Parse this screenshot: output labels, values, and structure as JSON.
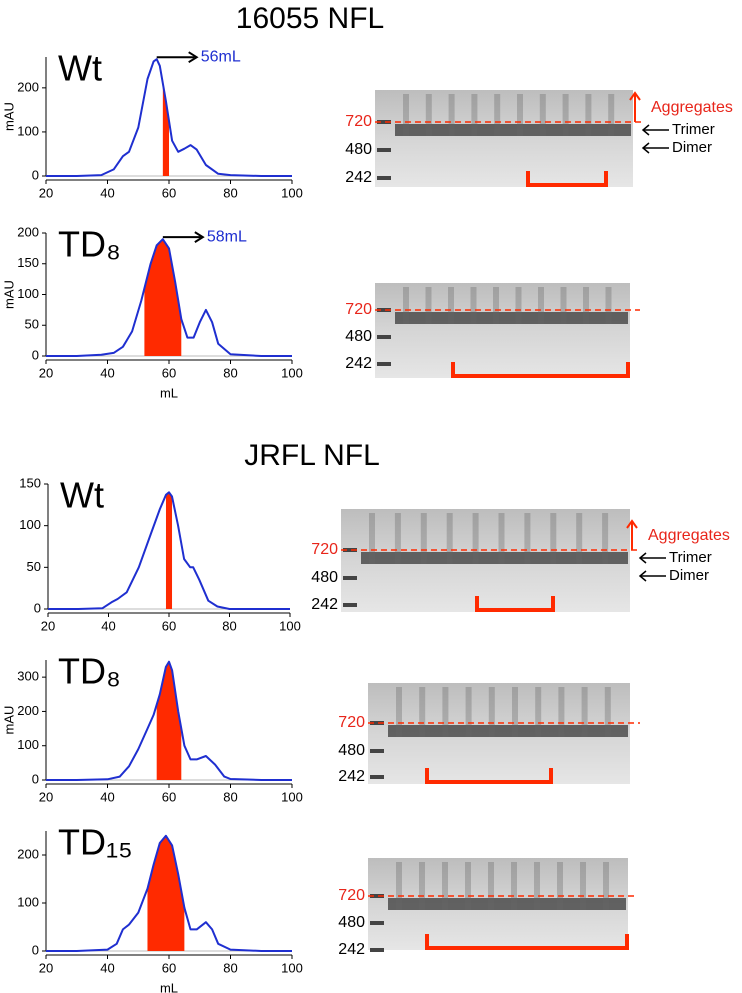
{
  "sections": [
    {
      "title": "16055 NFL"
    },
    {
      "title": "JRFL NFL"
    }
  ],
  "chart_data": [
    {
      "type": "line",
      "title": "Wt",
      "ylabel": "mAU",
      "annotation": "56mL",
      "color": "#1f2fd0",
      "fill_color": "#ff2a00",
      "fill_range": [
        58,
        60
      ],
      "x": [
        20,
        30,
        38,
        42,
        45,
        47,
        50,
        53,
        55,
        56,
        57,
        59,
        61,
        63,
        65,
        67,
        69,
        72,
        76,
        80,
        90,
        100
      ],
      "values": [
        0,
        0,
        2,
        15,
        45,
        55,
        110,
        220,
        260,
        265,
        250,
        170,
        80,
        55,
        62,
        70,
        60,
        25,
        5,
        2,
        0,
        0
      ],
      "xlim": [
        20,
        100
      ],
      "xticks": [
        20,
        40,
        60,
        80,
        100
      ],
      "ylim": [
        0,
        270
      ],
      "yticks": [
        0,
        100,
        200
      ]
    },
    {
      "type": "line",
      "title": "TD₈",
      "ylabel": "mAU",
      "xlabel": "mL",
      "annotation": "58mL",
      "color": "#1f2fd0",
      "fill_color": "#ff2a00",
      "fill_range": [
        52,
        64
      ],
      "x": [
        20,
        30,
        38,
        42,
        45,
        48,
        51,
        54,
        56,
        58,
        60,
        62,
        64,
        66,
        68,
        70,
        72,
        74,
        76,
        80,
        90,
        100
      ],
      "values": [
        0,
        0,
        2,
        5,
        15,
        40,
        90,
        150,
        180,
        190,
        175,
        120,
        60,
        30,
        30,
        55,
        75,
        55,
        20,
        3,
        0,
        0
      ],
      "xlim": [
        20,
        100
      ],
      "xticks": [
        20,
        40,
        60,
        80,
        100
      ],
      "ylim": [
        0,
        200
      ],
      "yticks": [
        0,
        50,
        100,
        150,
        200
      ]
    },
    {
      "type": "line",
      "title": "Wt",
      "color": "#1f2fd0",
      "fill_color": "#ff2a00",
      "fill_range": [
        59,
        61
      ],
      "x": [
        20,
        30,
        38,
        41,
        43,
        46,
        50,
        54,
        57,
        59,
        60,
        61,
        63,
        65,
        67,
        68,
        70,
        73,
        76,
        80,
        90,
        100
      ],
      "values": [
        0,
        0,
        1,
        8,
        12,
        20,
        50,
        90,
        120,
        137,
        140,
        135,
        100,
        60,
        50,
        50,
        35,
        10,
        3,
        0,
        0,
        0
      ],
      "xlim": [
        20,
        100
      ],
      "xticks": [
        20,
        40,
        60,
        80,
        100
      ],
      "ylim": [
        0,
        150
      ],
      "yticks": [
        0,
        50,
        100,
        150
      ]
    },
    {
      "type": "line",
      "title": "TD₈",
      "ylabel": "mAU",
      "color": "#1f2fd0",
      "fill_color": "#ff2a00",
      "fill_range": [
        56,
        64
      ],
      "x": [
        20,
        30,
        40,
        44,
        47,
        50,
        53,
        55,
        57,
        59,
        60,
        61,
        63,
        65,
        67,
        69,
        72,
        75,
        78,
        80,
        90,
        100
      ],
      "values": [
        0,
        0,
        2,
        10,
        40,
        90,
        150,
        190,
        250,
        330,
        345,
        320,
        200,
        100,
        60,
        60,
        70,
        45,
        10,
        3,
        0,
        0
      ],
      "xlim": [
        20,
        100
      ],
      "xticks": [
        20,
        40,
        60,
        80,
        100
      ],
      "ylim": [
        0,
        350
      ],
      "yticks": [
        0,
        100,
        200,
        300
      ]
    },
    {
      "type": "line",
      "title": "TD₁₅",
      "xlabel": "mL",
      "color": "#1f2fd0",
      "fill_color": "#ff2a00",
      "fill_range": [
        53,
        65
      ],
      "x": [
        20,
        30,
        40,
        43,
        45,
        47,
        50,
        53,
        55,
        57,
        59,
        61,
        63,
        65,
        67,
        69,
        72,
        74,
        76,
        80,
        90,
        100
      ],
      "values": [
        0,
        0,
        3,
        15,
        45,
        55,
        80,
        130,
        180,
        225,
        240,
        220,
        160,
        90,
        45,
        45,
        60,
        45,
        15,
        3,
        0,
        0
      ],
      "xlim": [
        20,
        100
      ],
      "xticks": [
        20,
        40,
        60,
        80,
        100
      ],
      "ylim": [
        0,
        250
      ],
      "yticks": [
        0,
        100,
        200
      ]
    }
  ],
  "gels": [
    {
      "markers": [
        720,
        480,
        242
      ],
      "labels": [
        "Aggregates",
        "Trimer",
        "Dimer"
      ]
    },
    {
      "markers": [
        720,
        480,
        242
      ]
    },
    {
      "markers": [
        720,
        480,
        242
      ],
      "labels": [
        "Aggregates",
        "Trimer",
        "Dimer"
      ]
    },
    {
      "markers": [
        720,
        480,
        242
      ]
    },
    {
      "markers": [
        720,
        480,
        242
      ]
    }
  ]
}
